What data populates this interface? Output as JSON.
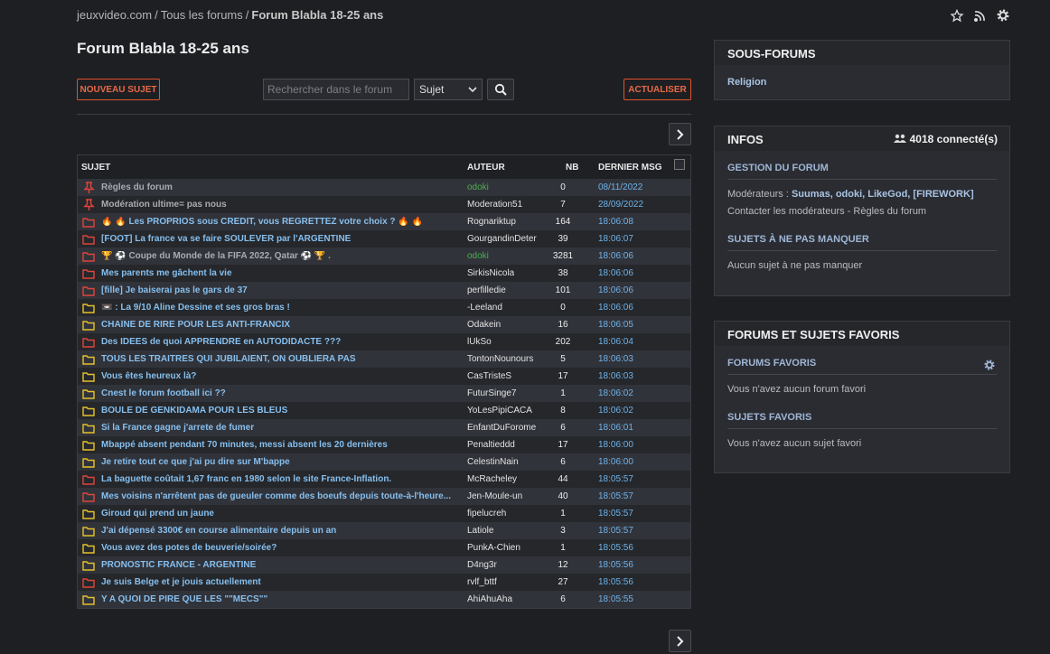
{
  "breadcrumb": {
    "items": [
      "jeuxvideo.com",
      "Tous les forums",
      "Forum Blabla 18-25 ans"
    ],
    "separator": "/"
  },
  "page_title": "Forum Blabla 18-25 ans",
  "toolbar": {
    "new_topic": "NOUVEAU SUJET",
    "search_placeholder": "Rechercher dans le forum",
    "search_scope": "Sujet",
    "refresh": "ACTUALISER"
  },
  "table": {
    "headers": [
      "SUJET",
      "AUTEUR",
      "NB",
      "DERNIER MSG"
    ],
    "rows": [
      {
        "icon": "pin",
        "subject": "Règles du forum",
        "author": "odoki",
        "author_color": "#4caf50",
        "nb": 0,
        "last": "08/11/2022"
      },
      {
        "icon": "pin",
        "subject": "Modération ultime= pas nous",
        "author": "Moderation51",
        "nb": 7,
        "last": "28/09/2022"
      },
      {
        "icon": "hot",
        "subject": "🔥 🔥 Les PROPRIOS sous CREDIT, vous REGRETTEZ votre choix ? 🔥 🔥",
        "author": "Rognariktup",
        "nb": 164,
        "last": "18:06:08"
      },
      {
        "icon": "hot",
        "subject": "[FOOT] La france va se faire SOULEVER par l'ARGENTINE",
        "author": "GourgandinDeter",
        "nb": 39,
        "last": "18:06:07"
      },
      {
        "icon": "hot",
        "muted": true,
        "subject": "🏆 ⚽ Coupe du Monde de la FIFA 2022, Qatar ⚽ 🏆 .",
        "author": "odoki",
        "author_color": "#4caf50",
        "nb": 3281,
        "last": "18:06:06"
      },
      {
        "icon": "hot",
        "subject": "Mes parents me gâchent la vie",
        "author": "SirkisNicola",
        "nb": 38,
        "last": "18:06:06"
      },
      {
        "icon": "hot",
        "subject": "[fille] Je baiserai pas le gars de 37",
        "author": "perfilledie",
        "nb": 101,
        "last": "18:06:06"
      },
      {
        "icon": "normal",
        "subject": "📼 : La 9/10 Aline Dessine et ses gros bras !",
        "author": "-Leeland",
        "nb": 0,
        "last": "18:06:06"
      },
      {
        "icon": "normal",
        "subject": "CHAÎNE DE RIRE POUR LES ANTI-FRANCIX",
        "author": "Odakein",
        "nb": 16,
        "last": "18:06:05"
      },
      {
        "icon": "hot",
        "subject": "Des IDEES de quoi APPRENDRE en AUTODIDACTE ???",
        "author": "lUkSo",
        "nb": 202,
        "last": "18:06:04"
      },
      {
        "icon": "normal",
        "subject": "TOUS LES TRAITRES QUI JUBILAIENT, ON OUBLIERA PAS",
        "author": "TontonNounours",
        "nb": 5,
        "last": "18:06:03"
      },
      {
        "icon": "normal",
        "subject": "Vous êtes heureux là?",
        "author": "CasTristeS",
        "nb": 17,
        "last": "18:06:03"
      },
      {
        "icon": "normal",
        "subject": "Cnest le forum football ici ??",
        "author": "FuturSinge7",
        "nb": 1,
        "last": "18:06:02"
      },
      {
        "icon": "normal",
        "subject": "BOULE DE GENKIDAMA POUR LES BLEUS",
        "author": "YoLesPipiCACA",
        "nb": 8,
        "last": "18:06:02"
      },
      {
        "icon": "normal",
        "subject": "Si la France gagne j'arrete de fumer",
        "author": "EnfantDuForome",
        "nb": 6,
        "last": "18:06:01"
      },
      {
        "icon": "normal",
        "subject": "Mbappé absent pendant 70 minutes, messi absent les 20 dernières",
        "author": "Penaltieddd",
        "nb": 17,
        "last": "18:06:00"
      },
      {
        "icon": "normal",
        "subject": "Je retire tout ce que j'ai pu dire sur M'bappe",
        "author": "CelestinNain",
        "nb": 6,
        "last": "18:06:00"
      },
      {
        "icon": "hot",
        "subject": "La baguette coûtait 1,67 franc en 1980 selon le site France-Inflation.",
        "author": "McRacheley",
        "nb": 44,
        "last": "18:05:57"
      },
      {
        "icon": "hot",
        "subject": "Mes voisins n'arrêtent pas de gueuler comme des boeufs depuis toute-à-l'heure...",
        "author": "Jen-Moule-un",
        "nb": 40,
        "last": "18:05:57"
      },
      {
        "icon": "normal",
        "subject": "Giroud qui prend un jaune",
        "author": "fipelucreh",
        "nb": 1,
        "last": "18:05:57"
      },
      {
        "icon": "normal",
        "subject": "J'ai dépensé 3300€ en course alimentaire depuis un an",
        "author": "Latiole",
        "nb": 3,
        "last": "18:05:57"
      },
      {
        "icon": "normal",
        "subject": "Vous avez des potes de beuverie/soirée?",
        "author": "PunkA-Chien",
        "nb": 1,
        "last": "18:05:56"
      },
      {
        "icon": "normal",
        "subject": "PRONOSTIC FRANCE - ARGENTINE",
        "author": "D4ng3r",
        "nb": 12,
        "last": "18:05:56"
      },
      {
        "icon": "hot",
        "subject": "Je suis Belge et je jouis actuellement",
        "author": "rvlf_bttf",
        "nb": 27,
        "last": "18:05:56"
      },
      {
        "icon": "normal",
        "subject": "Y A QUOI DE PIRE QUE LES \"\"MECS\"\"",
        "author": "AhiAhuAha",
        "nb": 6,
        "last": "18:05:55"
      }
    ]
  },
  "sidebar": {
    "subforums": {
      "title": "SOUS-FORUMS",
      "items": [
        "Religion"
      ]
    },
    "infos": {
      "title": "INFOS",
      "connected": "4018 connecté(s)",
      "management_title": "GESTION DU FORUM",
      "moderators_label": "Modérateurs :",
      "moderators": "Suumas, odoki, LikeGod, [FIREWORK]",
      "contact": "Contacter les modérateurs - Règles du forum",
      "must_see_title": "SUJETS À NE PAS MANQUER",
      "must_see_empty": "Aucun sujet à ne pas manquer"
    },
    "favorites": {
      "title": "FORUMS ET SUJETS FAVORIS",
      "forums_title": "FORUMS FAVORIS",
      "forums_empty": "Vous n'avez aucun forum favori",
      "topics_title": "SUJETS FAVORIS",
      "topics_empty": "Vous n'avez aucun sujet favori"
    }
  }
}
